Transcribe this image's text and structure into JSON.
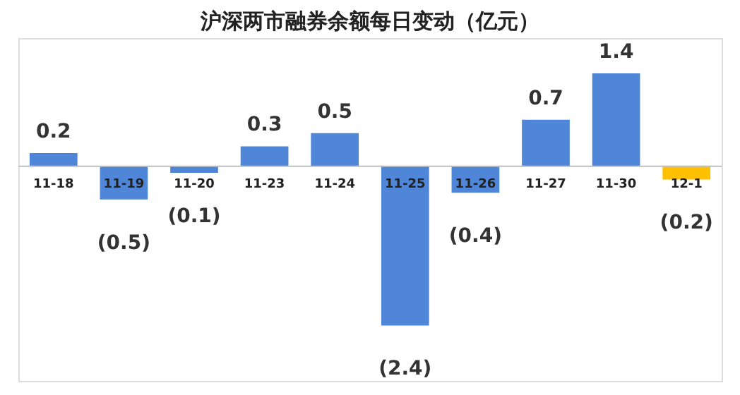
{
  "chart_data": {
    "type": "bar",
    "title": "沪深两市融券余额每日变动（亿元）",
    "categories": [
      "11-18",
      "11-19",
      "11-20",
      "11-23",
      "11-24",
      "11-25",
      "11-26",
      "11-27",
      "11-30",
      "12-1"
    ],
    "values": [
      0.2,
      -0.5,
      -0.1,
      0.3,
      0.5,
      -2.4,
      -0.4,
      0.7,
      1.4,
      -0.2
    ],
    "value_labels": [
      "0.2",
      "(0.5)",
      "(0.1)",
      "0.3",
      "0.5",
      "(2.4)",
      "(0.4)",
      "0.7",
      "1.4",
      "(0.2)"
    ],
    "colors": [
      "#4f86d8",
      "#4f86d8",
      "#4f86d8",
      "#4f86d8",
      "#4f86d8",
      "#4f86d8",
      "#4f86d8",
      "#4f86d8",
      "#4f86d8",
      "#ffc000"
    ],
    "grid": false
  }
}
